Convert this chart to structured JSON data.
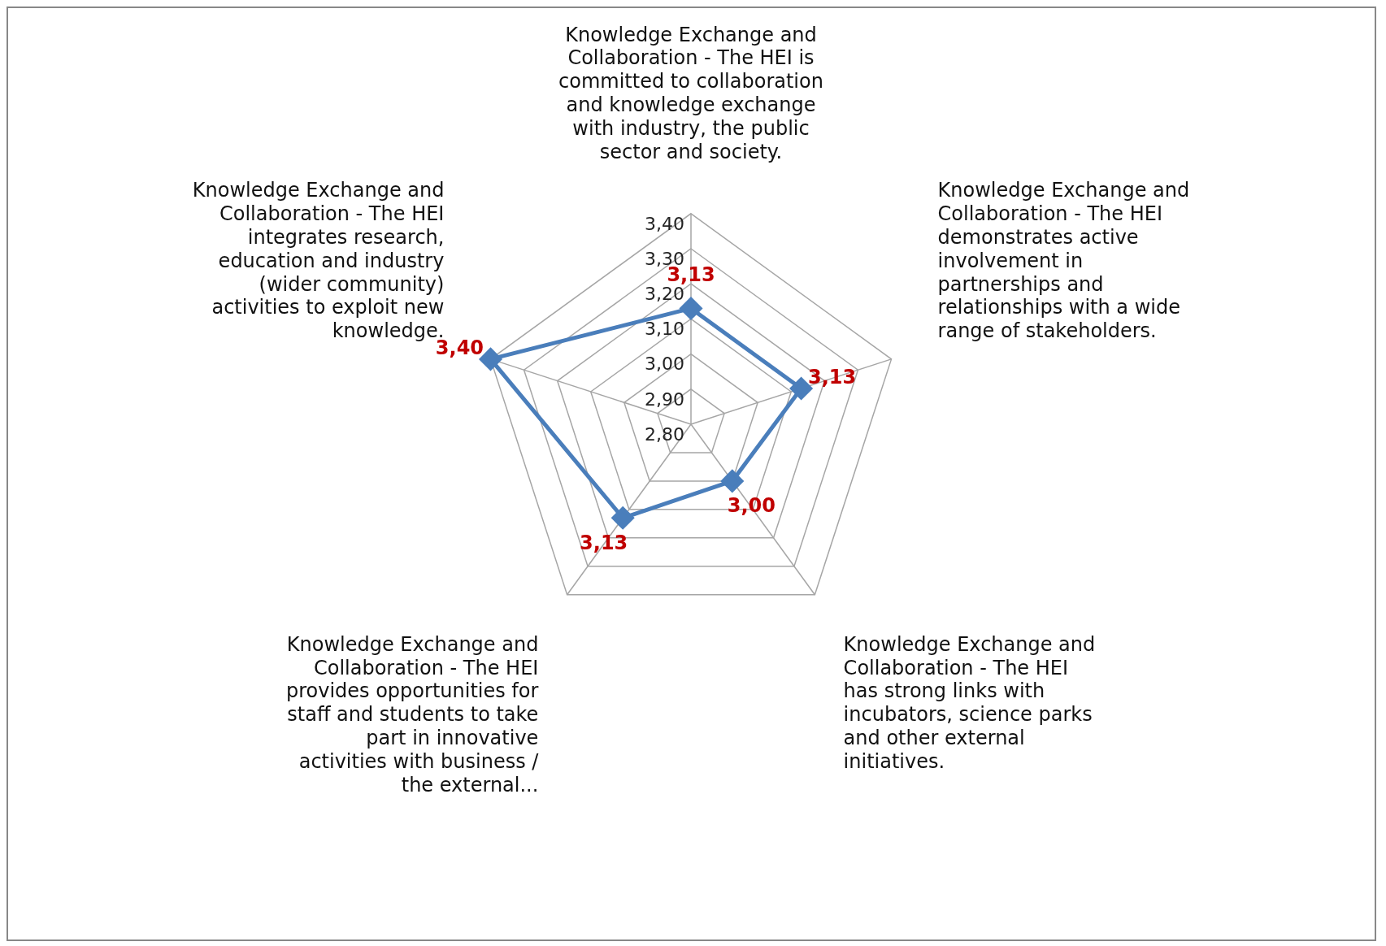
{
  "chart_data": {
    "type": "radar",
    "categories": [
      "Knowledge Exchange and Collaboration - The HEI is committed to collaboration and knowledge exchange with industry, the public sector and society.",
      "Knowledge Exchange and Collaboration - The HEI demonstrates active involvement in partnerships and relationships with a wide range of stakeholders.",
      "Knowledge Exchange and Collaboration - The HEI has strong links with incubators, science parks and other external initiatives.",
      "Knowledge Exchange and Collaboration - The HEI provides opportunities for staff and students to take part in innovative activities with business / the external...",
      "Knowledge Exchange and Collaboration - The HEI integrates research, education and industry (wider community) activities to exploit new knowledge."
    ],
    "series": [
      {
        "color": "#4a7ebb",
        "values": [
          3.13,
          3.13,
          3.0,
          3.13,
          3.4
        ],
        "value_labels": [
          "3,13",
          "3,13",
          "3,00",
          "3,13",
          "3,40"
        ]
      }
    ],
    "ylim": [
      2.8,
      3.4
    ],
    "yticks": [
      {
        "value": 2.8,
        "label": "2,80"
      },
      {
        "value": 2.9,
        "label": "2,90"
      },
      {
        "value": 3.0,
        "label": "3,00"
      },
      {
        "value": 3.1,
        "label": "3,10"
      },
      {
        "value": 3.2,
        "label": "3,20"
      },
      {
        "value": 3.3,
        "label": "3,30"
      },
      {
        "value": 3.4,
        "label": "3,40"
      }
    ],
    "grid": true,
    "legend": false,
    "marker": "diamond",
    "line_style": "solid"
  }
}
